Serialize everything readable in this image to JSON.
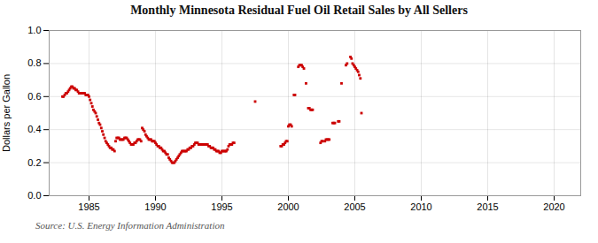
{
  "chart_data": {
    "type": "scatter",
    "title": "Monthly Minnesota Residual Fuel Oil Retail Sales by All Sellers",
    "ylabel": "Dollars per Gallon",
    "source": "Source: U.S. Energy Information Administration",
    "xlim": [
      1982,
      2022
    ],
    "ylim": [
      0.0,
      1.0
    ],
    "xticks": [
      1985,
      1990,
      1995,
      2000,
      2005,
      2010,
      2015,
      2020
    ],
    "yticks": [
      {
        "value": 0.0,
        "label": "0.0"
      },
      0.2,
      0.4,
      0.6,
      0.8,
      {
        "value": 1.0,
        "label": "1.0"
      }
    ],
    "grid": true,
    "color": "#cc0000",
    "marker": "square",
    "x": [
      1983.0,
      1983.08,
      1983.17,
      1983.25,
      1983.33,
      1983.42,
      1983.5,
      1983.58,
      1983.67,
      1983.75,
      1983.83,
      1983.92,
      1984.0,
      1984.08,
      1984.17,
      1984.25,
      1984.33,
      1984.42,
      1984.5,
      1984.58,
      1984.67,
      1984.75,
      1984.83,
      1984.92,
      1985.0,
      1985.08,
      1985.17,
      1985.25,
      1985.33,
      1985.42,
      1985.5,
      1985.58,
      1985.67,
      1985.75,
      1985.83,
      1985.92,
      1986.0,
      1986.08,
      1986.17,
      1986.25,
      1986.33,
      1986.42,
      1986.5,
      1986.58,
      1986.67,
      1986.75,
      1986.83,
      1986.92,
      1987.0,
      1987.08,
      1987.17,
      1987.25,
      1987.33,
      1987.42,
      1987.5,
      1987.58,
      1987.67,
      1987.75,
      1987.83,
      1987.92,
      1988.0,
      1988.08,
      1988.17,
      1988.25,
      1988.33,
      1988.42,
      1988.5,
      1988.58,
      1988.67,
      1988.75,
      1988.83,
      1988.92,
      1989.0,
      1989.08,
      1989.17,
      1989.25,
      1989.33,
      1989.42,
      1989.5,
      1989.58,
      1989.67,
      1989.75,
      1989.83,
      1989.92,
      1990.0,
      1990.08,
      1990.17,
      1990.25,
      1990.33,
      1990.42,
      1990.5,
      1990.58,
      1990.67,
      1990.75,
      1990.83,
      1990.92,
      1991.0,
      1991.08,
      1991.17,
      1991.25,
      1991.33,
      1991.42,
      1991.5,
      1991.58,
      1991.67,
      1991.75,
      1991.83,
      1991.92,
      1992.0,
      1992.08,
      1992.17,
      1992.25,
      1992.33,
      1992.42,
      1992.5,
      1992.58,
      1992.67,
      1992.75,
      1992.83,
      1992.92,
      1993.0,
      1993.08,
      1993.17,
      1993.25,
      1993.33,
      1993.42,
      1993.5,
      1993.58,
      1993.67,
      1993.75,
      1993.83,
      1993.92,
      1994.0,
      1994.08,
      1994.17,
      1994.25,
      1994.33,
      1994.42,
      1994.5,
      1994.58,
      1994.67,
      1994.75,
      1994.83,
      1994.92,
      1995.0,
      1995.08,
      1995.17,
      1995.25,
      1995.33,
      1995.42,
      1995.5,
      1995.58,
      1995.67,
      1995.75,
      1995.83,
      1995.92,
      1997.5,
      1999.42,
      1999.5,
      1999.58,
      1999.67,
      1999.75,
      1999.83,
      1999.92,
      2000.0,
      2000.08,
      2000.17,
      2000.25,
      2000.42,
      2000.5,
      2000.75,
      2000.83,
      2000.92,
      2001.0,
      2001.08,
      2001.17,
      2001.33,
      2001.5,
      2001.58,
      2001.67,
      2001.75,
      2001.83,
      2002.42,
      2002.5,
      2002.58,
      2002.75,
      2002.83,
      2002.92,
      2003.0,
      2003.08,
      2003.33,
      2003.42,
      2003.5,
      2003.75,
      2003.83,
      2004.0,
      2004.33,
      2004.42,
      2004.67,
      2004.75,
      2004.83,
      2004.92,
      2005.0,
      2005.08,
      2005.17,
      2005.25,
      2005.33,
      2005.42,
      2005.5
    ],
    "values": [
      0.6,
      0.6,
      0.61,
      0.62,
      0.62,
      0.63,
      0.64,
      0.65,
      0.66,
      0.66,
      0.65,
      0.65,
      0.64,
      0.64,
      0.63,
      0.62,
      0.62,
      0.62,
      0.62,
      0.62,
      0.62,
      0.61,
      0.61,
      0.61,
      0.6,
      0.58,
      0.56,
      0.54,
      0.52,
      0.51,
      0.5,
      0.48,
      0.46,
      0.44,
      0.43,
      0.41,
      0.39,
      0.37,
      0.35,
      0.33,
      0.32,
      0.31,
      0.3,
      0.29,
      0.29,
      0.28,
      0.28,
      0.27,
      0.33,
      0.35,
      0.35,
      0.35,
      0.34,
      0.34,
      0.34,
      0.34,
      0.35,
      0.35,
      0.35,
      0.34,
      0.33,
      0.32,
      0.31,
      0.31,
      0.31,
      0.32,
      0.32,
      0.33,
      0.34,
      0.34,
      0.34,
      0.33,
      0.41,
      0.4,
      0.39,
      0.37,
      0.36,
      0.35,
      0.34,
      0.34,
      0.34,
      0.33,
      0.33,
      0.33,
      0.32,
      0.31,
      0.3,
      0.3,
      0.29,
      0.29,
      0.28,
      0.27,
      0.27,
      0.26,
      0.25,
      0.25,
      0.23,
      0.22,
      0.21,
      0.2,
      0.2,
      0.2,
      0.21,
      0.22,
      0.23,
      0.24,
      0.25,
      0.26,
      0.27,
      0.27,
      0.27,
      0.27,
      0.27,
      0.28,
      0.28,
      0.29,
      0.29,
      0.3,
      0.3,
      0.31,
      0.32,
      0.32,
      0.32,
      0.31,
      0.31,
      0.31,
      0.31,
      0.31,
      0.31,
      0.31,
      0.31,
      0.31,
      0.3,
      0.3,
      0.29,
      0.29,
      0.29,
      0.28,
      0.28,
      0.27,
      0.27,
      0.27,
      0.26,
      0.26,
      0.27,
      0.27,
      0.27,
      0.27,
      0.27,
      0.28,
      0.3,
      0.31,
      0.31,
      0.31,
      0.32,
      0.32,
      0.57,
      0.3,
      0.3,
      0.31,
      0.31,
      0.32,
      0.33,
      0.33,
      0.42,
      0.43,
      0.43,
      0.42,
      0.61,
      0.61,
      0.78,
      0.79,
      0.79,
      0.79,
      0.78,
      0.77,
      0.68,
      0.53,
      0.53,
      0.52,
      0.52,
      0.52,
      0.32,
      0.33,
      0.33,
      0.33,
      0.34,
      0.34,
      0.34,
      0.34,
      0.44,
      0.44,
      0.44,
      0.45,
      0.45,
      0.68,
      0.79,
      0.8,
      0.84,
      0.83,
      0.8,
      0.79,
      0.78,
      0.77,
      0.76,
      0.75,
      0.73,
      0.71,
      0.5
    ]
  }
}
